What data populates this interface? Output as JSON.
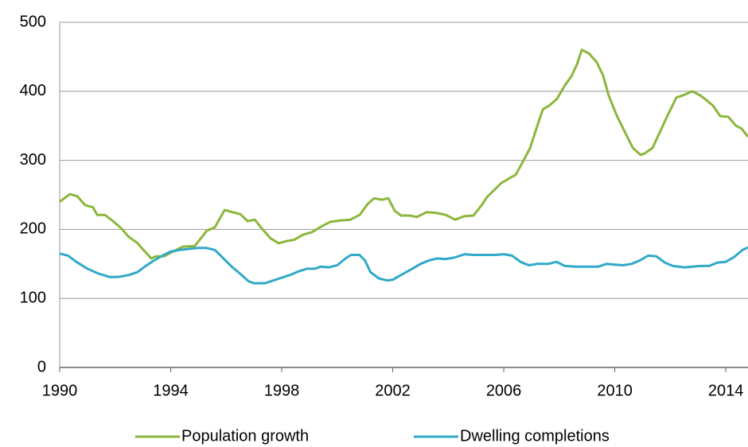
{
  "chart_data": {
    "type": "line",
    "xlim": [
      1990,
      2014.8
    ],
    "xticks": [
      1990,
      1994,
      1998,
      2002,
      2006,
      2010,
      2014
    ],
    "ylim": [
      0,
      500
    ],
    "yticks": [
      0,
      100,
      200,
      300,
      400,
      500
    ],
    "grid": true,
    "legend": "bottom",
    "series": [
      {
        "name": "Population growth",
        "color": "#8cb63c",
        "x": [
          1990.0,
          1990.37,
          1990.63,
          1990.92,
          1991.2,
          1991.35,
          1991.63,
          1991.92,
          1992.21,
          1992.49,
          1992.78,
          1993.07,
          1993.3,
          1993.47,
          1993.76,
          1994.04,
          1994.44,
          1994.87,
          1995.3,
          1995.59,
          1995.94,
          1996.22,
          1996.51,
          1996.77,
          1997.03,
          1997.31,
          1997.6,
          1997.89,
          1998.17,
          1998.46,
          1998.75,
          1999.09,
          1999.46,
          1999.75,
          2000.12,
          2000.47,
          2000.81,
          2001.1,
          2001.33,
          2001.61,
          2001.84,
          2002.07,
          2002.3,
          2002.62,
          2002.87,
          2003.22,
          2003.56,
          2003.91,
          2004.25,
          2004.57,
          2004.91,
          2005.2,
          2005.4,
          2005.68,
          2005.91,
          2006.2,
          2006.43,
          2006.66,
          2006.95,
          2007.15,
          2007.41,
          2007.63,
          2007.92,
          2008.21,
          2008.44,
          2008.64,
          2008.81,
          2009.07,
          2009.35,
          2009.58,
          2009.78,
          2010.07,
          2010.35,
          2010.65,
          2010.93,
          2011.08,
          2011.36,
          2011.65,
          2011.94,
          2012.22,
          2012.45,
          2012.8,
          2013.08,
          2013.31,
          2013.54,
          2013.8,
          2014.09,
          2014.37,
          2014.57,
          2014.8
        ],
        "values": [
          240,
          251,
          248,
          235,
          232,
          221,
          221,
          212,
          202,
          189,
          181,
          168,
          158,
          161,
          161,
          167,
          175,
          176,
          198,
          203,
          228,
          225,
          222,
          212,
          214,
          200,
          187,
          180,
          183,
          185,
          192,
          196,
          205,
          211,
          213,
          214,
          221,
          237,
          245,
          243,
          245,
          227,
          220,
          220,
          218,
          225,
          224,
          221,
          214,
          219,
          220,
          235,
          247,
          258,
          267,
          274,
          279,
          296,
          318,
          343,
          374,
          379,
          389,
          409,
          422,
          439,
          460,
          455,
          442,
          423,
          394,
          365,
          342,
          318,
          308,
          310,
          318,
          343,
          368,
          391,
          394,
          400,
          394,
          387,
          379,
          364,
          363,
          350,
          346,
          334
        ]
      },
      {
        "name": "Dwelling completions",
        "color": "#31a9c8",
        "x": [
          1990.0,
          1990.3,
          1990.6,
          1991.0,
          1991.4,
          1991.8,
          1992.1,
          1992.5,
          1992.8,
          1993.1,
          1993.4,
          1993.7,
          1994.0,
          1994.3,
          1994.7,
          1995.0,
          1995.3,
          1995.6,
          1995.9,
          1996.2,
          1996.5,
          1996.8,
          1997.0,
          1997.4,
          1997.7,
          1998.0,
          1998.3,
          1998.6,
          1998.9,
          1999.2,
          1999.4,
          1999.7,
          2000.0,
          2000.3,
          2000.5,
          2000.8,
          2001.0,
          2001.2,
          2001.5,
          2001.8,
          2002.0,
          2002.3,
          2002.7,
          2003.0,
          2003.3,
          2003.6,
          2003.9,
          2004.2,
          2004.6,
          2004.9,
          2005.3,
          2005.7,
          2006.0,
          2006.3,
          2006.6,
          2006.9,
          2007.2,
          2007.6,
          2007.9,
          2008.2,
          2008.6,
          2009.0,
          2009.4,
          2009.7,
          2010.0,
          2010.3,
          2010.6,
          2010.9,
          2011.2,
          2011.5,
          2011.8,
          2012.1,
          2012.5,
          2012.8,
          2013.1,
          2013.4,
          2013.7,
          2014.0,
          2014.3,
          2014.6,
          2014.8
        ],
        "values": [
          165,
          162,
          153,
          143,
          136,
          131,
          131,
          134,
          138,
          147,
          155,
          162,
          168,
          170,
          172,
          173,
          173,
          170,
          158,
          146,
          136,
          125,
          122,
          122,
          126,
          130,
          134,
          139,
          143,
          143,
          146,
          145,
          148,
          158,
          163,
          163,
          155,
          138,
          129,
          126,
          127,
          134,
          143,
          150,
          155,
          158,
          157,
          159,
          164,
          163,
          163,
          163,
          164,
          162,
          153,
          148,
          150,
          150,
          153,
          147,
          146,
          146,
          146,
          150,
          149,
          148,
          150,
          155,
          162,
          161,
          152,
          147,
          145,
          146,
          147,
          147,
          152,
          153,
          160,
          170,
          174
        ]
      }
    ]
  }
}
